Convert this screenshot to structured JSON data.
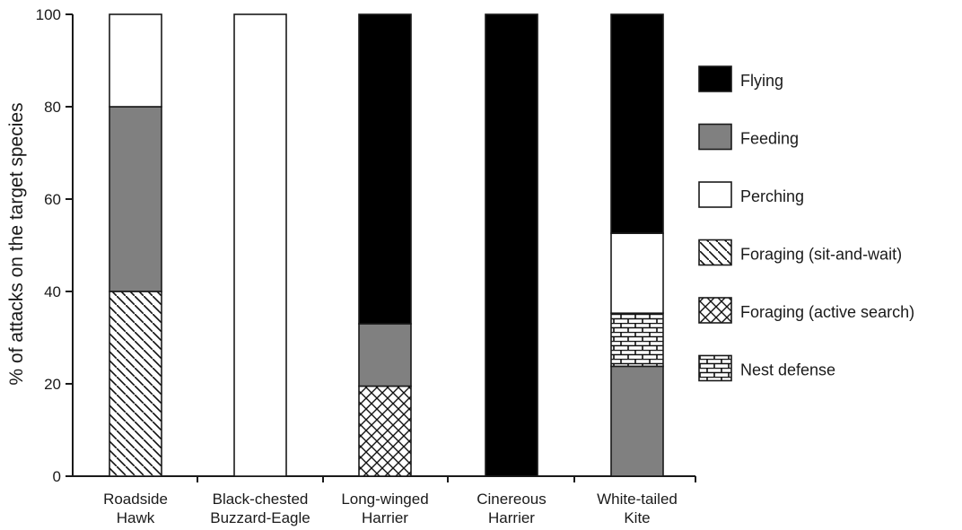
{
  "chart_data": {
    "type": "bar",
    "stacked": true,
    "ylabel": "% of attacks on the target species",
    "xlabel": "",
    "ylim": [
      0,
      100
    ],
    "yticks": [
      0,
      20,
      40,
      60,
      80,
      100
    ],
    "grid": false,
    "legend_position": "right",
    "categories": [
      [
        "Roadside",
        "Hawk"
      ],
      [
        "Black-chested",
        "Buzzard-Eagle"
      ],
      [
        "Long-winged",
        "Harrier"
      ],
      [
        "Cinereous",
        "Harrier"
      ],
      [
        "White-tailed",
        "Kite"
      ]
    ],
    "series": [
      {
        "name": "Nest defense",
        "pattern": "brick",
        "color": "#ffffff",
        "values": [
          0,
          0,
          0,
          0,
          11.5
        ]
      },
      {
        "name": "Foraging (active search)",
        "pattern": "crosshatch",
        "color": "#ffffff",
        "values": [
          0,
          0,
          19.5,
          0,
          0
        ]
      },
      {
        "name": "Foraging (sit-and-wait)",
        "pattern": "diagonal",
        "color": "#ffffff",
        "values": [
          40,
          0,
          0,
          0,
          0
        ]
      },
      {
        "name": "Perching",
        "pattern": "solid",
        "color": "#ffffff",
        "values": [
          20,
          100,
          0,
          0,
          17.3
        ]
      },
      {
        "name": "Feeding",
        "pattern": "solid",
        "color": "#808080",
        "values": [
          40,
          0,
          13.5,
          0,
          23.8
        ]
      },
      {
        "name": "Flying",
        "pattern": "solid",
        "color": "#000000",
        "values": [
          0,
          0,
          67,
          100,
          47.4
        ]
      }
    ],
    "stack_order": [
      [
        "Foraging (sit-and-wait)",
        "Feeding",
        "Perching"
      ],
      [
        "Perching"
      ],
      [
        "Foraging (active search)",
        "Feeding",
        "Flying"
      ],
      [
        "Flying"
      ],
      [
        "Feeding",
        "Nest defense",
        "Perching",
        "Flying"
      ]
    ],
    "legend": [
      "Flying",
      "Feeding",
      "Perching",
      "Foraging (sit-and-wait)",
      "Foraging (active search)",
      "Nest defense"
    ]
  }
}
